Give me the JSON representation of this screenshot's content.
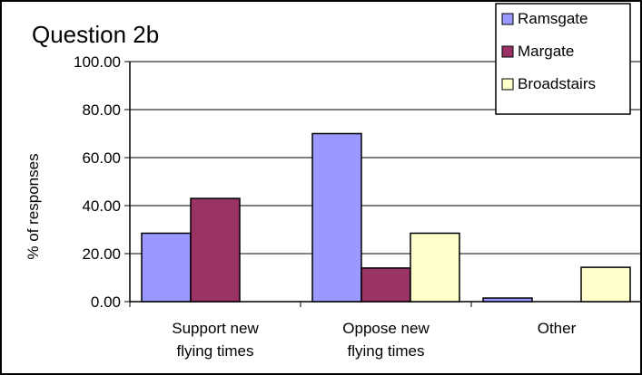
{
  "chart_data": {
    "type": "bar",
    "title": "Question 2b",
    "ylabel": "% of responses",
    "xlabel": "",
    "categories": [
      [
        "Support new",
        "flying times"
      ],
      [
        "Oppose new",
        "flying times"
      ],
      [
        "Other"
      ]
    ],
    "series": [
      {
        "name": "Ramsgate",
        "color": "#9999ff",
        "values": [
          28.5,
          70.0,
          1.5
        ]
      },
      {
        "name": "Margate",
        "color": "#993366",
        "values": [
          43.0,
          14.0,
          0.0
        ]
      },
      {
        "name": "Broadstairs",
        "color": "#ffffcc",
        "values": [
          0.0,
          28.5,
          14.3
        ]
      }
    ],
    "ylim": [
      0,
      100
    ],
    "yticks": [
      "0.00",
      "20.00",
      "40.00",
      "60.00",
      "80.00",
      "100.00"
    ],
    "grid": true,
    "legend_position": "top-right"
  }
}
